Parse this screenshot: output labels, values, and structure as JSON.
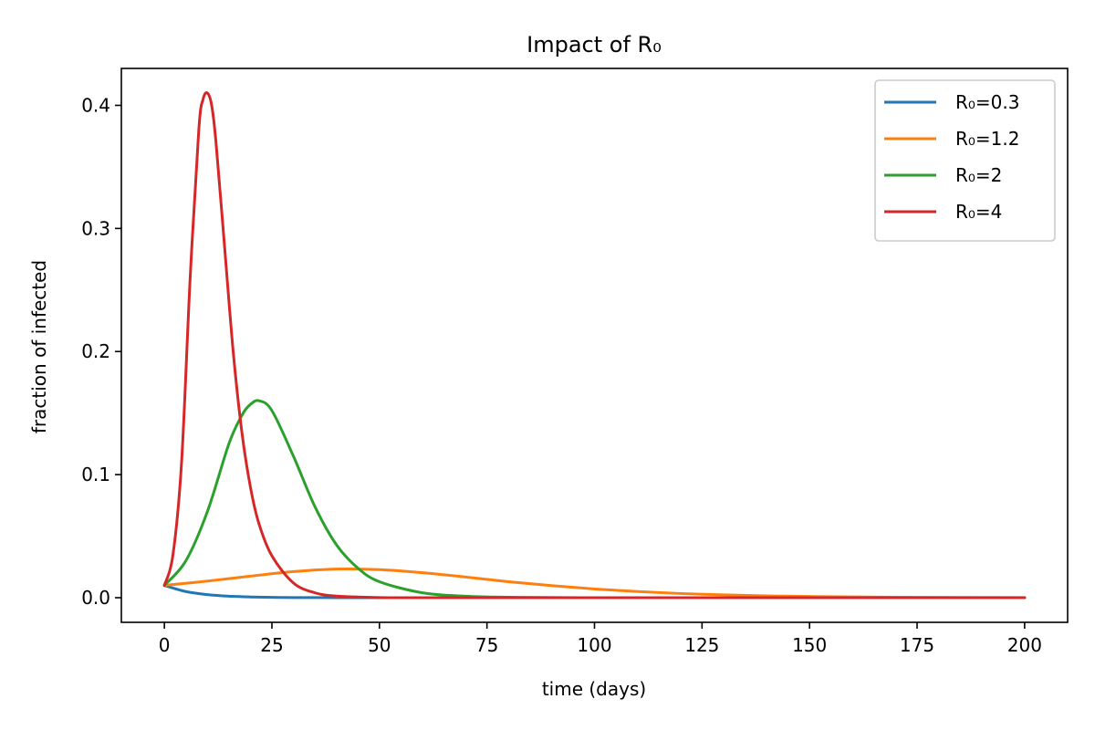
{
  "chart_data": {
    "type": "line",
    "title": "Impact of R₀",
    "xlabel": "time (days)",
    "ylabel": "fraction of infected",
    "xlim": [
      -10,
      210
    ],
    "ylim": [
      -0.02,
      0.43
    ],
    "xticks": [
      0,
      25,
      50,
      75,
      100,
      125,
      150,
      175,
      200
    ],
    "xtick_labels": [
      "0",
      "25",
      "50",
      "75",
      "100",
      "125",
      "150",
      "175",
      "200"
    ],
    "yticks": [
      0.0,
      0.1,
      0.2,
      0.3,
      0.4
    ],
    "ytick_labels": [
      "0.0",
      "0.1",
      "0.2",
      "0.3",
      "0.4"
    ],
    "grid": false,
    "legend_position": "top-right",
    "series": [
      {
        "name": "R₀=0.3",
        "color": "#1f77b4",
        "x": [
          0,
          5,
          10,
          15,
          20,
          25,
          30,
          40,
          50,
          75,
          100,
          150,
          200
        ],
        "y": [
          0.01,
          0.005,
          0.0025,
          0.0012,
          0.0006,
          0.0003,
          0.00015,
          4e-05,
          1e-05,
          0.0,
          0.0,
          0.0,
          0.0
        ]
      },
      {
        "name": "R₀=1.2",
        "color": "#ff7f0e",
        "x": [
          0,
          10,
          20,
          30,
          40,
          50,
          60,
          70,
          80,
          90,
          100,
          110,
          120,
          130,
          140,
          150,
          175,
          200
        ],
        "y": [
          0.01,
          0.0135,
          0.0175,
          0.0212,
          0.0233,
          0.0228,
          0.0203,
          0.0168,
          0.013,
          0.0098,
          0.0071,
          0.005,
          0.0034,
          0.0023,
          0.0015,
          0.001,
          0.0003,
          0.0001
        ]
      },
      {
        "name": "R₀=2",
        "color": "#2ca02c",
        "x": [
          0,
          5,
          10,
          15,
          18,
          20,
          22,
          25,
          30,
          35,
          40,
          45,
          50,
          60,
          70,
          80,
          100,
          150,
          200
        ],
        "y": [
          0.01,
          0.03,
          0.07,
          0.125,
          0.148,
          0.157,
          0.16,
          0.152,
          0.115,
          0.074,
          0.043,
          0.024,
          0.013,
          0.004,
          0.0012,
          0.0004,
          0.0,
          0.0,
          0.0
        ]
      },
      {
        "name": "R₀=4",
        "color": "#d62728",
        "x": [
          0,
          2,
          4,
          6,
          8,
          9,
          10,
          11,
          12,
          14,
          16,
          18,
          20,
          22,
          25,
          30,
          35,
          40,
          50,
          60,
          100,
          200
        ],
        "y": [
          0.01,
          0.035,
          0.11,
          0.26,
          0.38,
          0.405,
          0.41,
          0.4,
          0.37,
          0.285,
          0.2,
          0.135,
          0.09,
          0.06,
          0.034,
          0.012,
          0.004,
          0.0013,
          0.0001,
          0.0,
          0.0,
          0.0
        ]
      }
    ]
  }
}
